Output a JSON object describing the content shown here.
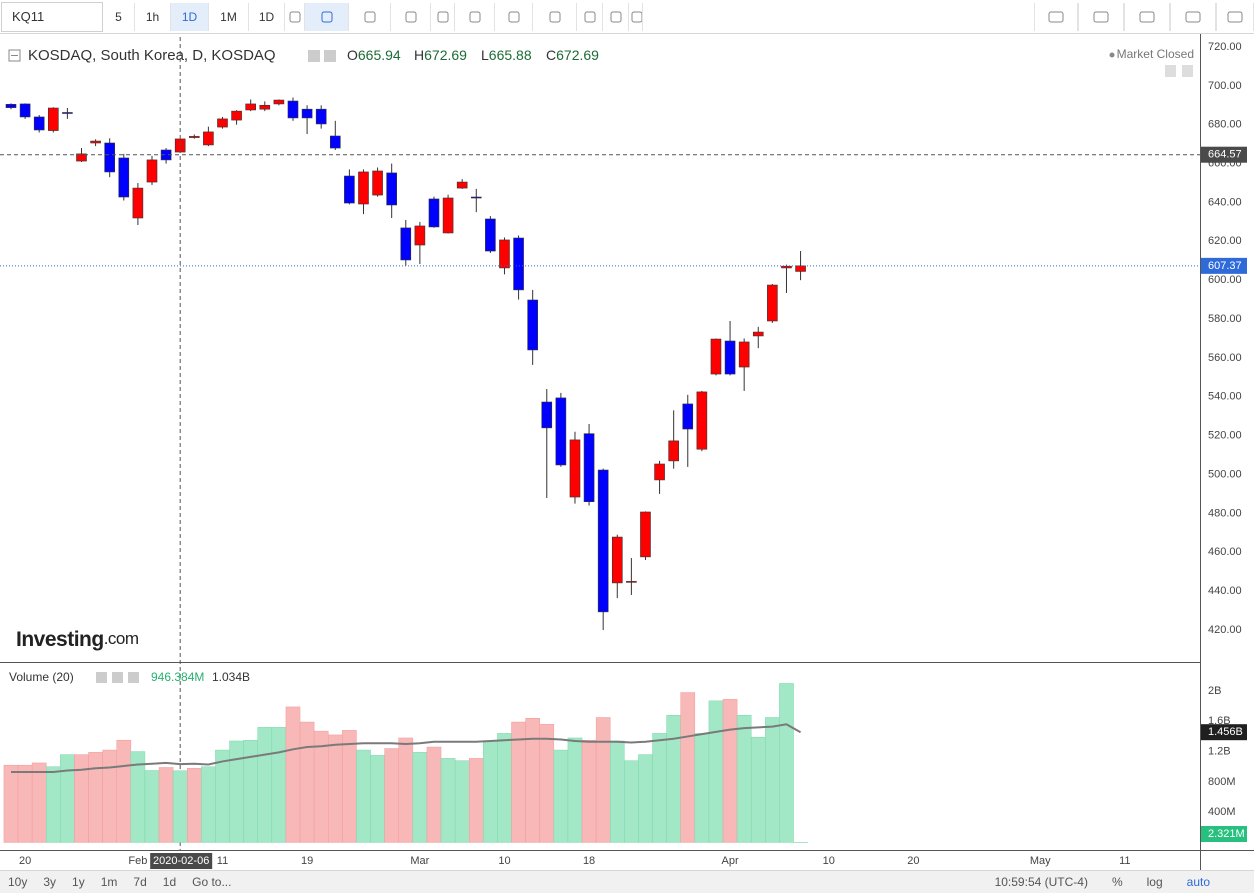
{
  "toolbar": {
    "symbol": "KQ11",
    "intervals": [
      "5",
      "1h",
      "1D",
      "1M",
      "1D"
    ]
  },
  "footer": {
    "ranges": [
      "10y",
      "3y",
      "1y",
      "1m",
      "7d",
      "1d"
    ],
    "goto": "Go to...",
    "clock": "10:59:54 (UTC-4)",
    "options": [
      "%",
      "log",
      "auto"
    ]
  },
  "logo": {
    "brand": "Investing",
    "suffix": ".com"
  },
  "chart_data": [
    {
      "type": "candlestick",
      "title": "KOSDAQ, South Korea, D, KOSDAQ",
      "status": "Market Closed",
      "ohlc_letters": [
        "O",
        "H",
        "L",
        "C"
      ],
      "up_color": "#ff0000",
      "down_color": "#0000ff",
      "open": [
        690.5,
        690.7,
        684,
        677,
        686.3,
        661.3,
        670.6,
        670.6,
        662.9,
        632,
        650.5,
        667,
        665.94,
        673.4,
        669.6,
        678.8,
        682.4,
        687.6,
        688,
        690.7,
        692.2,
        688,
        688,
        674.2,
        653.6,
        639.2,
        643.8,
        655.2,
        626.9,
        618.1,
        641.8,
        624.3,
        647.4,
        642.8,
        631.5,
        606.3,
        621.7,
        589.8,
        537.3,
        539.4,
        488.4,
        521,
        502.3,
        444.2,
        444.5,
        457.6,
        497.2,
        507,
        536.3,
        513,
        551.7,
        568.7,
        555.3,
        571.3,
        579,
        606.3,
        604.5
      ],
      "high": [
        691,
        691,
        685,
        689,
        688.6,
        668,
        672.5,
        673,
        665,
        650,
        664,
        668,
        672.69,
        675,
        679,
        684,
        687.5,
        693,
        692,
        693,
        694,
        690,
        690,
        682,
        657,
        657,
        658,
        660,
        631,
        630,
        643,
        644,
        652,
        647,
        633,
        622,
        623,
        595,
        544,
        542,
        522,
        526,
        503,
        469,
        457,
        481,
        507,
        533,
        541,
        543,
        570,
        579,
        570,
        576,
        598,
        608,
        615
      ],
      "low": [
        688,
        683,
        676,
        676,
        683,
        660.8,
        669,
        653,
        641,
        628.4,
        649,
        660,
        665.88,
        672.8,
        669,
        678,
        680,
        687,
        687,
        690,
        682,
        675.2,
        678,
        667,
        639,
        634,
        643,
        632,
        607.5,
        608.3,
        627,
        624,
        647,
        635,
        614,
        603,
        590,
        556.4,
        487.9,
        504,
        485,
        484,
        420,
        436.4,
        438,
        456,
        490,
        503,
        503.9,
        512,
        551,
        551,
        543,
        565,
        578,
        593.4,
        600
      ],
      "close": [
        688.8,
        684,
        677.3,
        688.6,
        686,
        665,
        671.6,
        655.7,
        642.8,
        647.4,
        661.9,
        661.9,
        672.69,
        674,
        676.3,
        683,
        687,
        690.7,
        690,
        692.7,
        683.5,
        683.5,
        680.4,
        668,
        639.7,
        655.7,
        656.2,
        638.7,
        610.4,
        627.9,
        627.4,
        642.3,
        650.5,
        642.5,
        615,
        620.7,
        595,
        564.1,
        524,
        504.9,
        517.8,
        486,
        429.3,
        467.8,
        445,
        480.7,
        505.4,
        517.3,
        523.4,
        542.5,
        569.7,
        551.7,
        568.2,
        573.3,
        597.5,
        607.2,
        607.37
      ],
      "last_color": "#2f6ad9",
      "xlim": [
        -0.78,
        84.33
      ],
      "xticks": [
        {
          "value": 1,
          "label": "20"
        },
        {
          "value": 9,
          "label": "Feb"
        },
        {
          "value": 15,
          "label": "11"
        },
        {
          "value": 21,
          "label": "19"
        },
        {
          "value": 29,
          "label": "Mar"
        },
        {
          "value": 35,
          "label": "10"
        },
        {
          "value": 41,
          "label": "18"
        },
        {
          "value": 51,
          "label": "Apr"
        },
        {
          "value": 58,
          "label": "10"
        },
        {
          "value": 64,
          "label": "20"
        },
        {
          "value": 73,
          "label": "May"
        },
        {
          "value": 79,
          "label": "11"
        }
      ],
      "ylim": [
        403.5,
        725.15
      ],
      "yticks": [
        {
          "value": 420,
          "label": "420.00"
        },
        {
          "value": 440,
          "label": "440.00"
        },
        {
          "value": 460,
          "label": "460.00"
        },
        {
          "value": 480,
          "label": "480.00"
        },
        {
          "value": 500,
          "label": "500.00"
        },
        {
          "value": 520,
          "label": "520.00"
        },
        {
          "value": 540,
          "label": "540.00"
        },
        {
          "value": 560,
          "label": "560.00"
        },
        {
          "value": 580,
          "label": "580.00"
        },
        {
          "value": 600,
          "label": "600.00"
        },
        {
          "value": 620,
          "label": "620.00"
        },
        {
          "value": 640,
          "label": "640.00"
        },
        {
          "value": 660,
          "label": "660.00"
        },
        {
          "value": 680,
          "label": "680.00"
        },
        {
          "value": 700,
          "label": "700.00"
        },
        {
          "value": 720,
          "label": "720.00"
        }
      ],
      "crosshair": {
        "x": 12,
        "y": 664.57,
        "x_label": "2020-02-06"
      }
    },
    {
      "type": "volume",
      "title": "Volume (20)",
      "values": [
        1020000000.0,
        1020000000.0,
        1050000000.0,
        1000000000.0,
        1160000000.0,
        1160000000.0,
        1190000000.0,
        1220000000.0,
        1350000000.0,
        1200000000.0,
        950000000.0,
        990000000.0,
        946384000.0,
        980000000.0,
        1000000000.0,
        1220000000.0,
        1340000000.0,
        1350000000.0,
        1520000000.0,
        1520000000.0,
        1790000000.0,
        1590000000.0,
        1470000000.0,
        1420000000.0,
        1480000000.0,
        1220000000.0,
        1150000000.0,
        1240000000.0,
        1380000000.0,
        1190000000.0,
        1260000000.0,
        1110000000.0,
        1080000000.0,
        1110000000.0,
        1340000000.0,
        1440000000.0,
        1590000000.0,
        1640000000.0,
        1560000000.0,
        1220000000.0,
        1380000000.0,
        1350000000.0,
        1650000000.0,
        1340000000.0,
        1080000000.0,
        1160000000.0,
        1440000000.0,
        1680000000.0,
        1980000000.0,
        1440000000.0,
        1870000000.0,
        1890000000.0,
        1680000000.0,
        1390000000.0,
        1650000000.0,
        2100000000.0,
        2321000.0
      ],
      "value_labels": [
        null,
        null,
        null,
        null,
        null,
        null,
        null,
        null,
        null,
        null,
        null,
        null,
        "946.384M",
        null,
        null,
        null,
        null,
        null,
        null,
        null,
        null,
        null,
        null,
        null,
        null,
        null,
        null,
        null,
        null,
        null,
        null,
        null,
        null,
        null,
        null,
        null,
        null,
        null,
        null,
        null,
        null,
        null,
        null,
        null,
        null,
        null,
        null,
        null,
        null,
        null,
        null,
        null,
        null,
        null,
        null,
        null,
        "2.321M"
      ],
      "colors": [
        "#f9b8b8",
        "#f9b8b8",
        "#f9b8b8",
        "#a2e8c6",
        "#a2e8c6",
        "#f9b8b8",
        "#f9b8b8",
        "#f9b8b8",
        "#f9b8b8",
        "#a2e8c6",
        "#a2e8c6",
        "#f9b8b8",
        "#a2e8c6",
        "#f9b8b8",
        "#a2e8c6",
        "#a2e8c6",
        "#a2e8c6",
        "#a2e8c6",
        "#a2e8c6",
        "#a2e8c6",
        "#f9b8b8",
        "#f9b8b8",
        "#f9b8b8",
        "#f9b8b8",
        "#f9b8b8",
        "#a2e8c6",
        "#a2e8c6",
        "#f9b8b8",
        "#f9b8b8",
        "#a2e8c6",
        "#f9b8b8",
        "#a2e8c6",
        "#a2e8c6",
        "#f9b8b8",
        "#a2e8c6",
        "#a2e8c6",
        "#f9b8b8",
        "#f9b8b8",
        "#f9b8b8",
        "#a2e8c6",
        "#a2e8c6",
        "#f9b8b8",
        "#f9b8b8",
        "#a2e8c6",
        "#a2e8c6",
        "#a2e8c6",
        "#a2e8c6",
        "#a2e8c6",
        "#f9b8b8",
        "#a2e8c6",
        "#a2e8c6",
        "#f9b8b8",
        "#a2e8c6",
        "#a2e8c6",
        "#a2e8c6",
        "#a2e8c6",
        "#a2e8c6"
      ],
      "ma_values": [
        930000000.0,
        930000000.0,
        930000000.0,
        930000000.0,
        950000000.0,
        960000000.0,
        980000000.0,
        990000000.0,
        1010000000.0,
        1030000000.0,
        1040000000.0,
        1050000000.0,
        1034000000.0,
        1040000000.0,
        1030000000.0,
        1070000000.0,
        1100000000.0,
        1130000000.0,
        1160000000.0,
        1190000000.0,
        1230000000.0,
        1260000000.0,
        1270000000.0,
        1290000000.0,
        1300000000.0,
        1310000000.0,
        1310000000.0,
        1310000000.0,
        1300000000.0,
        1310000000.0,
        1330000000.0,
        1330000000.0,
        1330000000.0,
        1330000000.0,
        1340000000.0,
        1350000000.0,
        1360000000.0,
        1370000000.0,
        1370000000.0,
        1360000000.0,
        1340000000.0,
        1330000000.0,
        1330000000.0,
        1330000000.0,
        1320000000.0,
        1330000000.0,
        1350000000.0,
        1370000000.0,
        1400000000.0,
        1430000000.0,
        1460000000.0,
        1490000000.0,
        1510000000.0,
        1520000000.0,
        1530000000.0,
        1560000000.0,
        1456000000.0
      ],
      "ma_value_labels": [
        null,
        null,
        null,
        null,
        null,
        null,
        null,
        null,
        null,
        null,
        null,
        null,
        "1.034B",
        null,
        null,
        null,
        null,
        null,
        null,
        null,
        null,
        null,
        null,
        null,
        null,
        null,
        null,
        null,
        null,
        null,
        null,
        null,
        null,
        null,
        null,
        null,
        null,
        null,
        null,
        null,
        null,
        null,
        null,
        null,
        null,
        null,
        null,
        null,
        null,
        null,
        null,
        null,
        null,
        null,
        null,
        null,
        "1.456B"
      ],
      "ma_color": "#7a7a7a",
      "last_color": "#27c07e",
      "ylim": [
        -100000000.0,
        2370000000.0
      ],
      "yticks": [
        {
          "value": 400000000.0,
          "label": "400M"
        },
        {
          "value": 800000000.0,
          "label": "800M"
        },
        {
          "value": 1200000000.0,
          "label": "1.2B"
        },
        {
          "value": 1600000000.0,
          "label": "1.6B"
        },
        {
          "value": 2000000000.0,
          "label": "2B"
        }
      ]
    }
  ]
}
